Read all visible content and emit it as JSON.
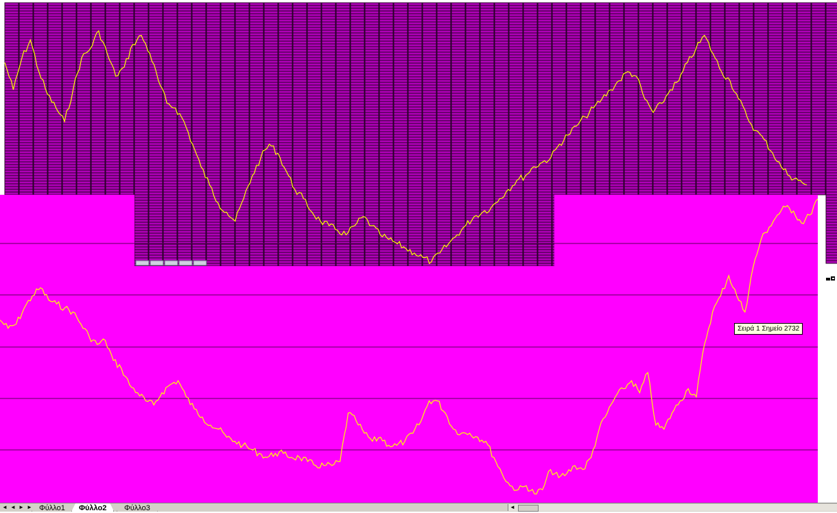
{
  "tooltip": {
    "text": "Σειρά 1 Σημείο 2732"
  },
  "sheet_tabs": [
    {
      "label": "Φύλλο1",
      "active": false
    },
    {
      "label": "Φύλλο2",
      "active": true
    },
    {
      "label": "Φύλλο3",
      "active": false
    }
  ],
  "nav_buttons": [
    "first-sheet",
    "previous-sheet",
    "next-sheet",
    "last-sheet"
  ],
  "colors": {
    "plot_area": "#ff00ff",
    "cell_fill": "#b000b8",
    "cell_lines": "#2a002a",
    "series": "#ffff00",
    "gridline": "#5a005a"
  },
  "chart_data": [
    {
      "type": "line",
      "series": [
        {
          "values": [
            70,
            64,
            71,
            75,
            68,
            63,
            60,
            57,
            64,
            71,
            73,
            77,
            72,
            67,
            69,
            74,
            76,
            72,
            66,
            61,
            60,
            57,
            52,
            47,
            43,
            39,
            37,
            35,
            40,
            45,
            49,
            52,
            50,
            46,
            42,
            40,
            37,
            35,
            34,
            33,
            32,
            34,
            36,
            34,
            32,
            31,
            30,
            29,
            28,
            27,
            26,
            28,
            30,
            32,
            34,
            36,
            37,
            38,
            40,
            42,
            44,
            45,
            47,
            48,
            49,
            52,
            54,
            56,
            58,
            60,
            62,
            64,
            66,
            68,
            67,
            62,
            59,
            61,
            64,
            66,
            70,
            73,
            76,
            72,
            68,
            66,
            62,
            58,
            55,
            53,
            50,
            47,
            45,
            44,
            43
          ]
        }
      ]
    },
    {
      "type": "line",
      "series": [
        {
          "values": [
            42,
            40,
            41,
            45,
            48,
            50,
            47,
            46,
            45,
            44,
            41,
            38,
            36,
            37,
            32,
            30,
            26,
            24,
            22,
            21,
            24,
            26,
            27,
            23,
            20,
            18,
            16,
            15,
            13,
            12,
            11,
            10,
            9,
            8,
            9,
            9,
            8,
            8,
            7,
            6,
            6,
            6,
            7,
            19,
            17,
            14,
            12,
            13,
            11,
            11,
            12,
            14,
            17,
            22,
            22,
            19,
            15,
            14,
            14,
            13,
            12,
            8,
            4,
            1,
            0,
            1,
            -1,
            0,
            5,
            3,
            4,
            6,
            5,
            8,
            15,
            19,
            23,
            25,
            27,
            24,
            29,
            16,
            15,
            19,
            22,
            25,
            23,
            36,
            44,
            48,
            53,
            48,
            44,
            55,
            62,
            65,
            68,
            70,
            69,
            66,
            68,
            72
          ]
        }
      ]
    }
  ]
}
